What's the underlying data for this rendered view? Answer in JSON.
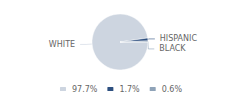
{
  "chart_data": {
    "type": "pie",
    "categories": [
      "WHITE",
      "HISPANIC",
      "BLACK"
    ],
    "values": [
      97.7,
      1.7,
      0.6
    ],
    "value_labels": [
      "97.7%",
      "1.7%",
      "0.6%"
    ],
    "colors": [
      "#cdd5e0",
      "#2e5080",
      "#8fa3b8"
    ],
    "legend": "bottom"
  }
}
